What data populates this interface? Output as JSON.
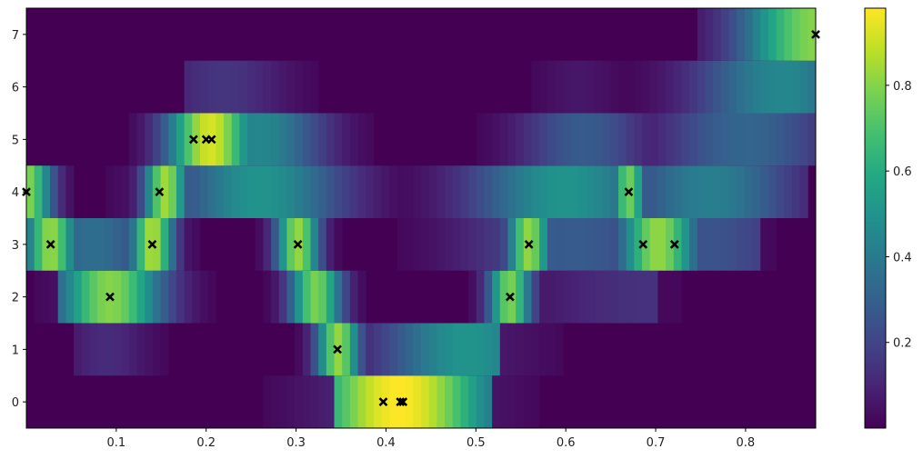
{
  "chart_data": {
    "type": "heatmap",
    "title": "",
    "xlabel": "",
    "ylabel": "",
    "colormap": "viridis",
    "xlim": [
      0.0,
      0.878
    ],
    "ylim": [
      -0.5,
      7.5
    ],
    "n_columns": 100,
    "rows": [
      0,
      1,
      2,
      3,
      4,
      5,
      6,
      7
    ],
    "x_ticks": [
      "0.1",
      "0.2",
      "0.3",
      "0.4",
      "0.5",
      "0.6",
      "0.7",
      "0.8"
    ],
    "x_tick_values": [
      0.1,
      0.2,
      0.3,
      0.4,
      0.5,
      0.6,
      0.7,
      0.8
    ],
    "y_ticks": [
      "0",
      "1",
      "2",
      "3",
      "4",
      "5",
      "6",
      "7"
    ],
    "colorbar": {
      "range": [
        0.0,
        0.98
      ],
      "ticks": [
        "0.2",
        "0.4",
        "0.6",
        "0.8"
      ],
      "tick_values": [
        0.2,
        0.4,
        0.6,
        0.8
      ]
    },
    "row_blobs": {
      "0": [
        {
          "c": 0.415,
          "w": 0.045,
          "h": 0.98
        }
      ],
      "1": [
        {
          "c": 0.347,
          "w": 0.01,
          "h": 0.82
        },
        {
          "c": 0.49,
          "w": 0.04,
          "h": 0.5
        },
        {
          "c": 0.09,
          "w": 0.02,
          "h": 0.12
        }
      ],
      "2": [
        {
          "c": 0.093,
          "w": 0.025,
          "h": 0.8
        },
        {
          "c": 0.322,
          "w": 0.012,
          "h": 0.78
        },
        {
          "c": 0.538,
          "w": 0.01,
          "h": 0.78
        },
        {
          "c": 0.7,
          "w": 0.06,
          "h": 0.14
        }
      ],
      "3": [
        {
          "c": 0.027,
          "w": 0.012,
          "h": 0.82
        },
        {
          "c": 0.14,
          "w": 0.01,
          "h": 0.86
        },
        {
          "c": 0.075,
          "w": 0.03,
          "h": 0.35
        },
        {
          "c": 0.302,
          "w": 0.01,
          "h": 0.82
        },
        {
          "c": 0.559,
          "w": 0.01,
          "h": 0.82
        },
        {
          "c": 0.61,
          "w": 0.05,
          "h": 0.28
        },
        {
          "c": 0.703,
          "w": 0.018,
          "h": 0.82
        },
        {
          "c": 0.76,
          "w": 0.04,
          "h": 0.25
        }
      ],
      "4": [
        {
          "c": 0.0,
          "w": 0.012,
          "h": 0.8
        },
        {
          "c": 0.155,
          "w": 0.01,
          "h": 0.84
        },
        {
          "c": 0.26,
          "w": 0.04,
          "h": 0.5
        },
        {
          "c": 0.6,
          "w": 0.045,
          "h": 0.5
        },
        {
          "c": 0.67,
          "w": 0.008,
          "h": 0.76
        },
        {
          "c": 0.76,
          "w": 0.04,
          "h": 0.42
        }
      ],
      "5": [
        {
          "c": 0.205,
          "w": 0.02,
          "h": 0.92
        },
        {
          "c": 0.26,
          "w": 0.03,
          "h": 0.45
        },
        {
          "c": 0.62,
          "w": 0.03,
          "h": 0.28
        },
        {
          "c": 0.8,
          "w": 0.04,
          "h": 0.32
        }
      ],
      "6": [
        {
          "c": 0.22,
          "w": 0.03,
          "h": 0.15
        },
        {
          "c": 0.615,
          "w": 0.02,
          "h": 0.06
        },
        {
          "c": 0.84,
          "w": 0.04,
          "h": 0.45
        }
      ],
      "7": [
        {
          "c": 0.878,
          "w": 0.035,
          "h": 0.8
        }
      ]
    },
    "row_extents": {
      "0": [
        0.345,
        0.52
      ],
      "1": [
        0.055,
        0.53
      ],
      "2": [
        0.035,
        0.7
      ],
      "3": [
        0.0,
        0.82
      ],
      "4": [
        0.0,
        0.87
      ],
      "5": [
        0.0,
        0.878
      ],
      "6": [
        0.176,
        0.878
      ],
      "7": [
        0.75,
        0.878
      ]
    },
    "markers": [
      {
        "x": 0.0,
        "y": 4
      },
      {
        "x": 0.027,
        "y": 3
      },
      {
        "x": 0.093,
        "y": 2
      },
      {
        "x": 0.14,
        "y": 3
      },
      {
        "x": 0.148,
        "y": 4
      },
      {
        "x": 0.186,
        "y": 5
      },
      {
        "x": 0.2,
        "y": 5
      },
      {
        "x": 0.206,
        "y": 5
      },
      {
        "x": 0.302,
        "y": 3
      },
      {
        "x": 0.346,
        "y": 1
      },
      {
        "x": 0.397,
        "y": 0
      },
      {
        "x": 0.416,
        "y": 0
      },
      {
        "x": 0.419,
        "y": 0
      },
      {
        "x": 0.538,
        "y": 2
      },
      {
        "x": 0.559,
        "y": 3
      },
      {
        "x": 0.67,
        "y": 4
      },
      {
        "x": 0.686,
        "y": 3
      },
      {
        "x": 0.721,
        "y": 3
      },
      {
        "x": 0.878,
        "y": 7
      }
    ],
    "marker_style": "x",
    "marker_color": "#000000",
    "grid": false,
    "legend": null
  }
}
